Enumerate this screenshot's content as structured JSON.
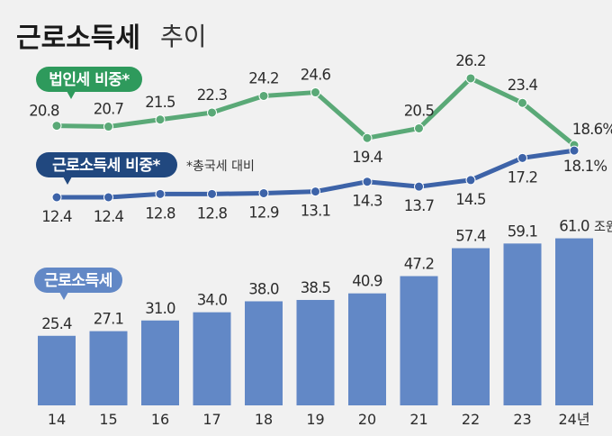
{
  "title": {
    "bold": "근로소득세",
    "light": "추이"
  },
  "chart_data": [
    {
      "type": "line",
      "name": "법인세 비중*",
      "color": "#5aa977",
      "categories": [
        "14",
        "15",
        "16",
        "17",
        "18",
        "19",
        "20",
        "21",
        "22",
        "23",
        "24"
      ],
      "labels": [
        "20.8",
        "20.7",
        "21.5",
        "22.3",
        "24.2",
        "24.6",
        "19.4",
        "20.5",
        "26.2",
        "23.4",
        "18.6%"
      ],
      "values": [
        20.8,
        20.7,
        21.5,
        22.3,
        24.2,
        24.6,
        19.4,
        20.5,
        26.2,
        23.4,
        18.6
      ]
    },
    {
      "type": "line",
      "name": "근로소득세 비중*",
      "note": "*총국세 대비",
      "color": "#3d63a8",
      "categories": [
        "14",
        "15",
        "16",
        "17",
        "18",
        "19",
        "20",
        "21",
        "22",
        "23",
        "24"
      ],
      "labels": [
        "12.4",
        "12.4",
        "12.8",
        "12.8",
        "12.9",
        "13.1",
        "14.3",
        "13.7",
        "14.5",
        "17.2",
        "18.1%"
      ],
      "values": [
        12.4,
        12.4,
        12.8,
        12.8,
        12.9,
        13.1,
        14.3,
        13.7,
        14.5,
        17.2,
        18.1
      ]
    },
    {
      "type": "bar",
      "name": "근로소득세",
      "color": "#6288c6",
      "unit": "조원",
      "categories": [
        "14",
        "15",
        "16",
        "17",
        "18",
        "19",
        "20",
        "21",
        "22",
        "23",
        "24년"
      ],
      "labels": [
        "25.4",
        "27.1",
        "31.0",
        "34.0",
        "38.0",
        "38.5",
        "40.9",
        "47.2",
        "57.4",
        "59.1",
        "61.0"
      ],
      "values": [
        25.4,
        27.1,
        31.0,
        34.0,
        38.0,
        38.5,
        40.9,
        47.2,
        57.4,
        59.1,
        61.0
      ]
    }
  ]
}
